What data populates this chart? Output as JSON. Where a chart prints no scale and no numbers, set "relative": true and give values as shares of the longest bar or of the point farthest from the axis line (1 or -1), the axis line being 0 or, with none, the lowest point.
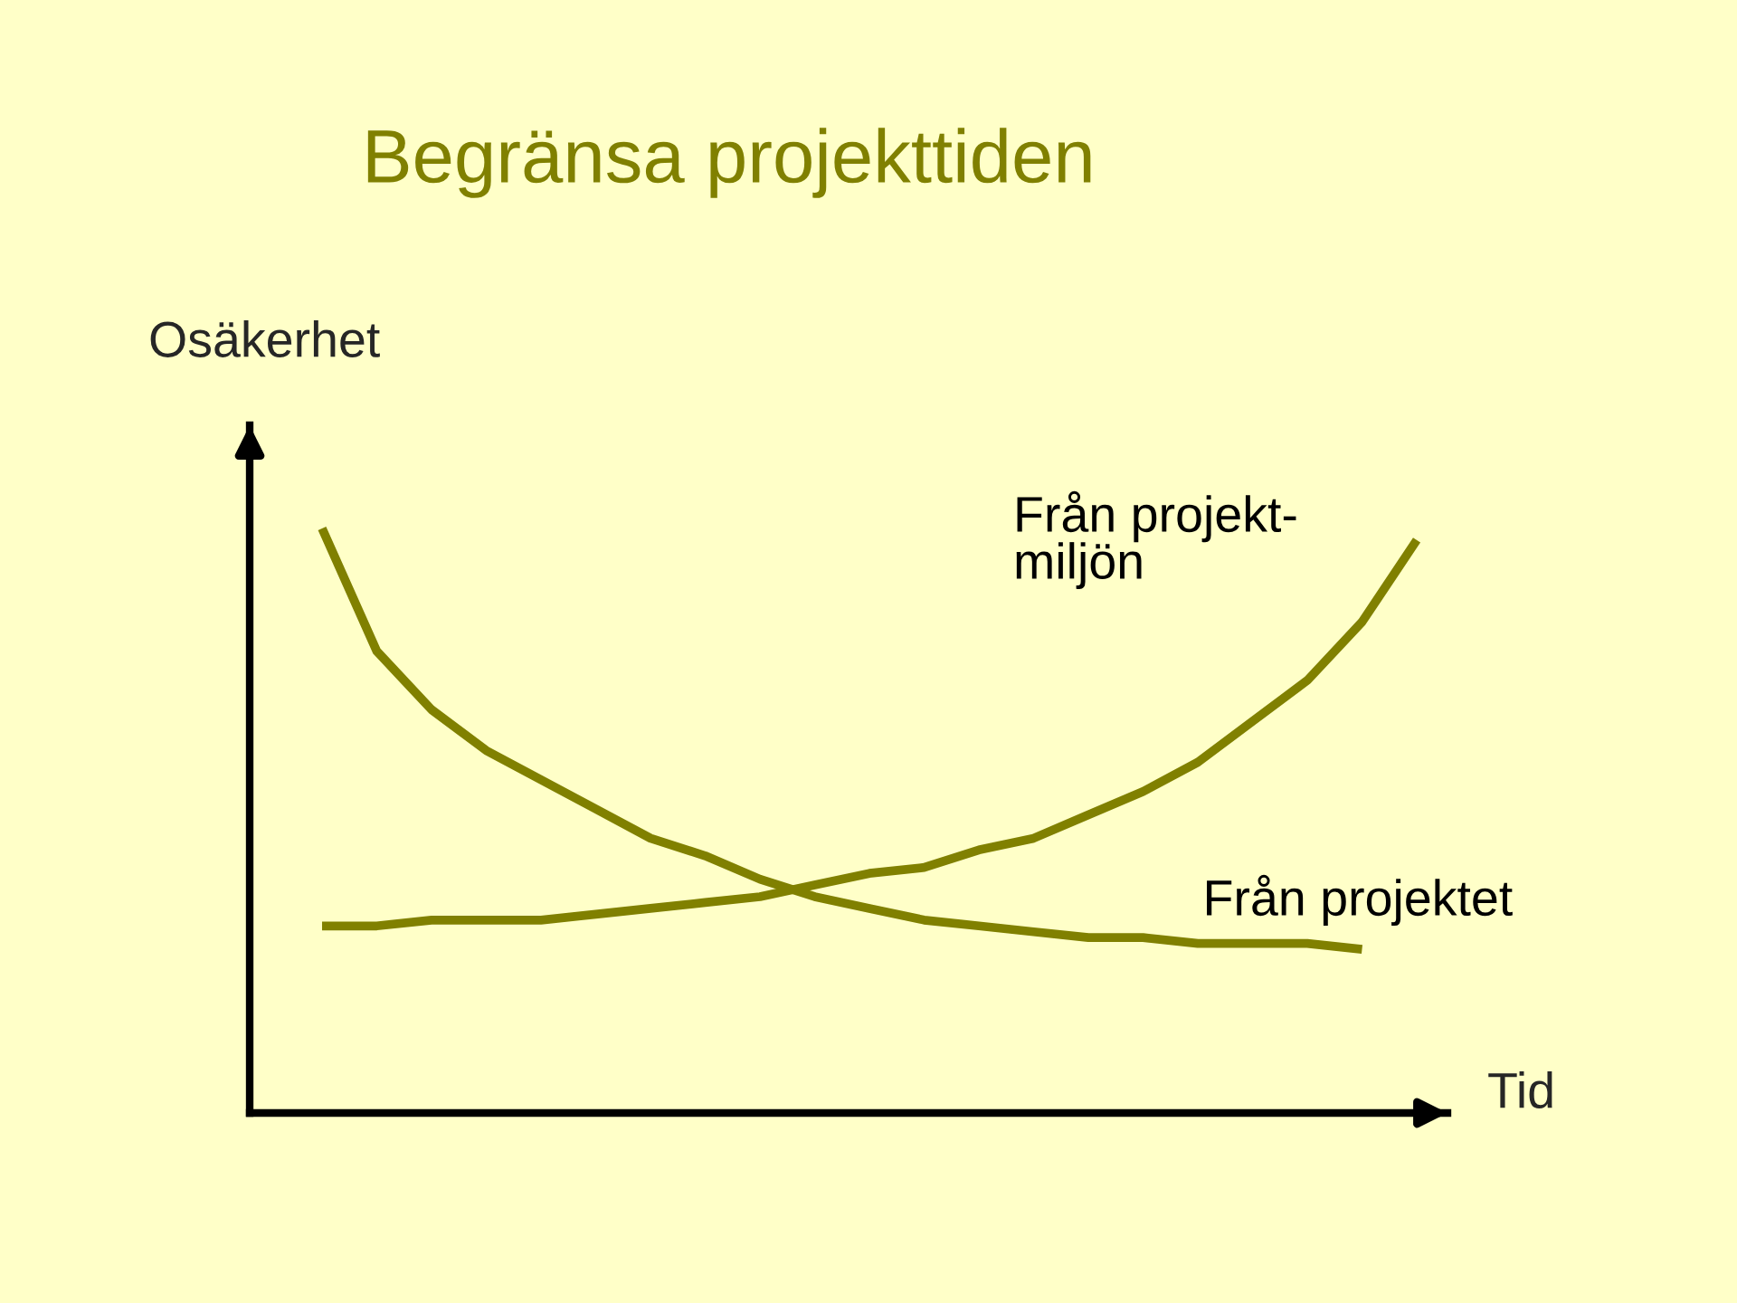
{
  "chart_data": {
    "type": "line",
    "title": "Begränsa projekttiden",
    "xlabel": "Tid",
    "ylabel": "Osäkerhet",
    "relative": true,
    "categories": [
      null,
      null,
      null,
      null,
      null,
      null,
      null,
      null,
      null,
      null,
      null,
      null,
      null,
      null,
      null,
      null,
      null,
      null,
      null,
      null,
      null
    ],
    "series": [
      {
        "name": "Från projektet",
        "color": "#808000",
        "values": [
          1,
          0.79,
          0.69,
          0.62,
          0.57,
          0.52,
          0.47,
          0.44,
          0.4,
          0.37,
          0.35,
          0.33,
          0.32,
          0.31,
          0.3,
          0.3,
          0.29,
          0.29,
          0.29,
          0.28,
          null
        ]
      },
      {
        "name": "Från projekt-\nmiljön",
        "color": "#808000",
        "values": [
          0.32,
          0.32,
          0.33,
          0.33,
          0.33,
          0.34,
          0.35,
          0.36,
          0.37,
          0.39,
          0.41,
          0.42,
          0.45,
          0.47,
          0.51,
          0.55,
          0.6,
          0.67,
          0.74,
          0.84,
          0.98
        ]
      }
    ]
  }
}
